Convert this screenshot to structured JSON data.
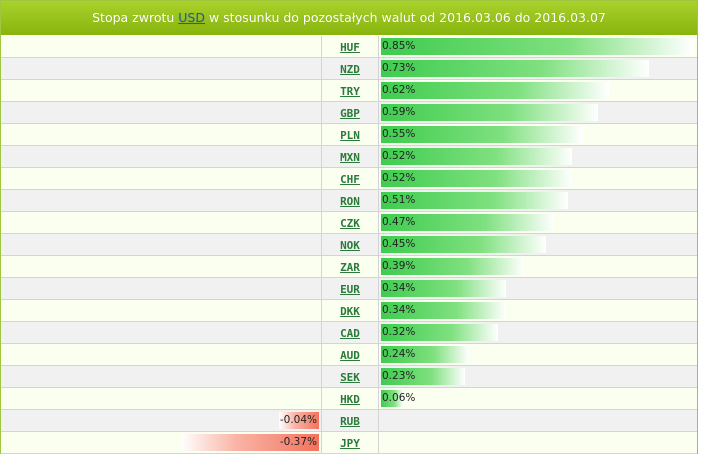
{
  "header": {
    "prefix": "Stopa zwrotu ",
    "base_currency": "USD",
    "suffix": " w stosunku do pozostałych walut od 2016.03.06 do 2016.03.07"
  },
  "colors": {
    "header_top": "#a9d22b",
    "header_bottom": "#88b40e",
    "positive": "#3fcc4f",
    "negative": "#f3735e",
    "code_link": "#2a7a3a"
  },
  "max_abs_value": 0.85,
  "rows": [
    {
      "code": "HUF",
      "value": 0.85,
      "label": "0.85%"
    },
    {
      "code": "NZD",
      "value": 0.73,
      "label": "0.73%"
    },
    {
      "code": "TRY",
      "value": 0.62,
      "label": "0.62%"
    },
    {
      "code": "GBP",
      "value": 0.59,
      "label": "0.59%"
    },
    {
      "code": "PLN",
      "value": 0.55,
      "label": "0.55%"
    },
    {
      "code": "MXN",
      "value": 0.52,
      "label": "0.52%"
    },
    {
      "code": "CHF",
      "value": 0.52,
      "label": "0.52%"
    },
    {
      "code": "RON",
      "value": 0.51,
      "label": "0.51%"
    },
    {
      "code": "CZK",
      "value": 0.47,
      "label": "0.47%"
    },
    {
      "code": "NOK",
      "value": 0.45,
      "label": "0.45%"
    },
    {
      "code": "ZAR",
      "value": 0.39,
      "label": "0.39%"
    },
    {
      "code": "EUR",
      "value": 0.34,
      "label": "0.34%"
    },
    {
      "code": "DKK",
      "value": 0.34,
      "label": "0.34%"
    },
    {
      "code": "CAD",
      "value": 0.32,
      "label": "0.32%"
    },
    {
      "code": "AUD",
      "value": 0.24,
      "label": "0.24%"
    },
    {
      "code": "SEK",
      "value": 0.23,
      "label": "0.23%"
    },
    {
      "code": "HKD",
      "value": 0.06,
      "label": "0.06%"
    },
    {
      "code": "RUB",
      "value": -0.04,
      "label": "-0.04%"
    },
    {
      "code": "JPY",
      "value": -0.37,
      "label": "-0.37%"
    }
  ]
}
